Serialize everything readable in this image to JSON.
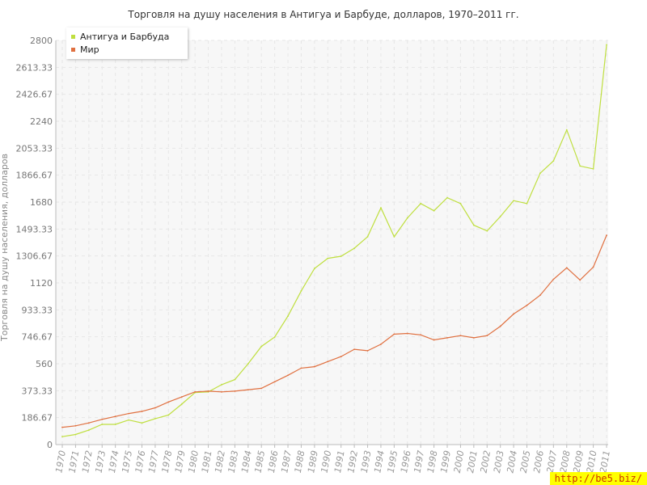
{
  "chart_data": {
    "type": "line",
    "title": "Торговля на душу населения в Антигуа и Барбуде, долларов, 1970–2011 гг.",
    "ylabel": "Торговля на душу населения, долларов",
    "xlabel": "",
    "ylim": [
      0,
      2800
    ],
    "yticks": [
      "0",
      "186.67",
      "373.33",
      "560",
      "746.67",
      "933.33",
      "1120",
      "1306.67",
      "1493.33",
      "1680",
      "1866.67",
      "2053.33",
      "2240",
      "2426.67",
      "2613.33",
      "2800"
    ],
    "x": [
      "1970",
      "1971",
      "1972",
      "1973",
      "1974",
      "1975",
      "1976",
      "1977",
      "1978",
      "1979",
      "1980",
      "1981",
      "1982",
      "1983",
      "1984",
      "1985",
      "1986",
      "1987",
      "1988",
      "1989",
      "1990",
      "1991",
      "1992",
      "1993",
      "1994",
      "1995",
      "1996",
      "1997",
      "1998",
      "1999",
      "2000",
      "2001",
      "2002",
      "2003",
      "2004",
      "2005",
      "2006",
      "2007",
      "2008",
      "2009",
      "2010",
      "2011"
    ],
    "grid": true,
    "legend_position": "top-left",
    "series": [
      {
        "name": "Антигуа и Барбуда",
        "color": "#bfdf3f",
        "values": [
          55,
          70,
          100,
          140,
          140,
          170,
          150,
          180,
          205,
          280,
          360,
          365,
          415,
          450,
          560,
          680,
          745,
          890,
          1065,
          1220,
          1290,
          1305,
          1360,
          1440,
          1640,
          1440,
          1570,
          1670,
          1620,
          1710,
          1670,
          1520,
          1480,
          1580,
          1690,
          1670,
          1880,
          1965,
          2180,
          1930,
          1910,
          2770
        ]
      },
      {
        "name": "Мир",
        "color": "#e07040",
        "values": [
          120,
          130,
          150,
          175,
          195,
          215,
          230,
          255,
          295,
          330,
          365,
          370,
          365,
          370,
          380,
          390,
          435,
          480,
          530,
          540,
          575,
          610,
          660,
          650,
          695,
          765,
          770,
          760,
          725,
          740,
          755,
          740,
          755,
          820,
          905,
          965,
          1035,
          1145,
          1225,
          1140,
          1230,
          1450
        ]
      }
    ]
  },
  "watermark": "http://be5.biz/"
}
